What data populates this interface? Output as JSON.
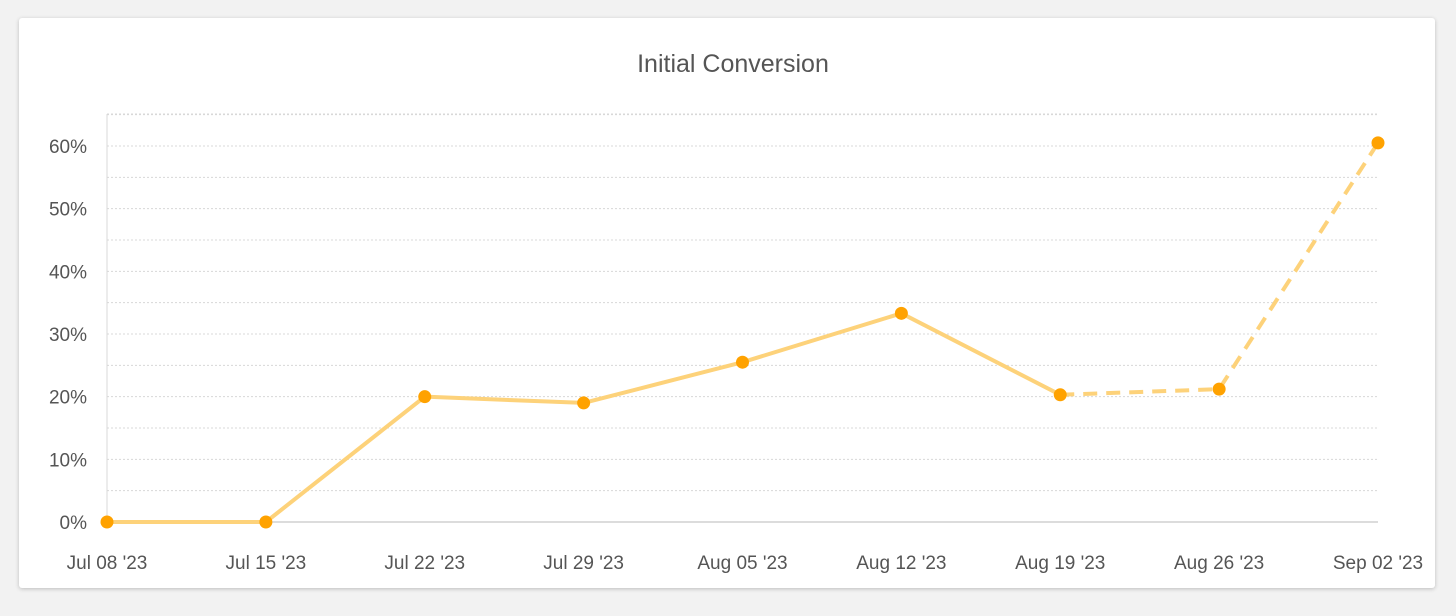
{
  "chart_data": {
    "type": "line",
    "title": "Initial Conversion",
    "xlabel": "",
    "ylabel": "",
    "categories": [
      "Jul 08 '23",
      "Jul 15 '23",
      "Jul 22 '23",
      "Jul 29 '23",
      "Aug 05 '23",
      "Aug 12 '23",
      "Aug 19 '23",
      "Aug 26 '23",
      "Sep 02 '23"
    ],
    "values": [
      0,
      0,
      20,
      19,
      25.5,
      33.3,
      20.3,
      21.2,
      60.5
    ],
    "unit": "%",
    "ylim": [
      0,
      60
    ],
    "yticks": [
      "0%",
      "10%",
      "20%",
      "30%",
      "40%",
      "50%",
      "60%"
    ],
    "solid_until_index": 6,
    "dashed_from_index": 6,
    "grid": true,
    "legend": "none",
    "colors": {
      "line": "#fdd27a",
      "point": "#ffa200",
      "grid": "#d8d8d8",
      "axis": "#c8c8c8"
    }
  }
}
